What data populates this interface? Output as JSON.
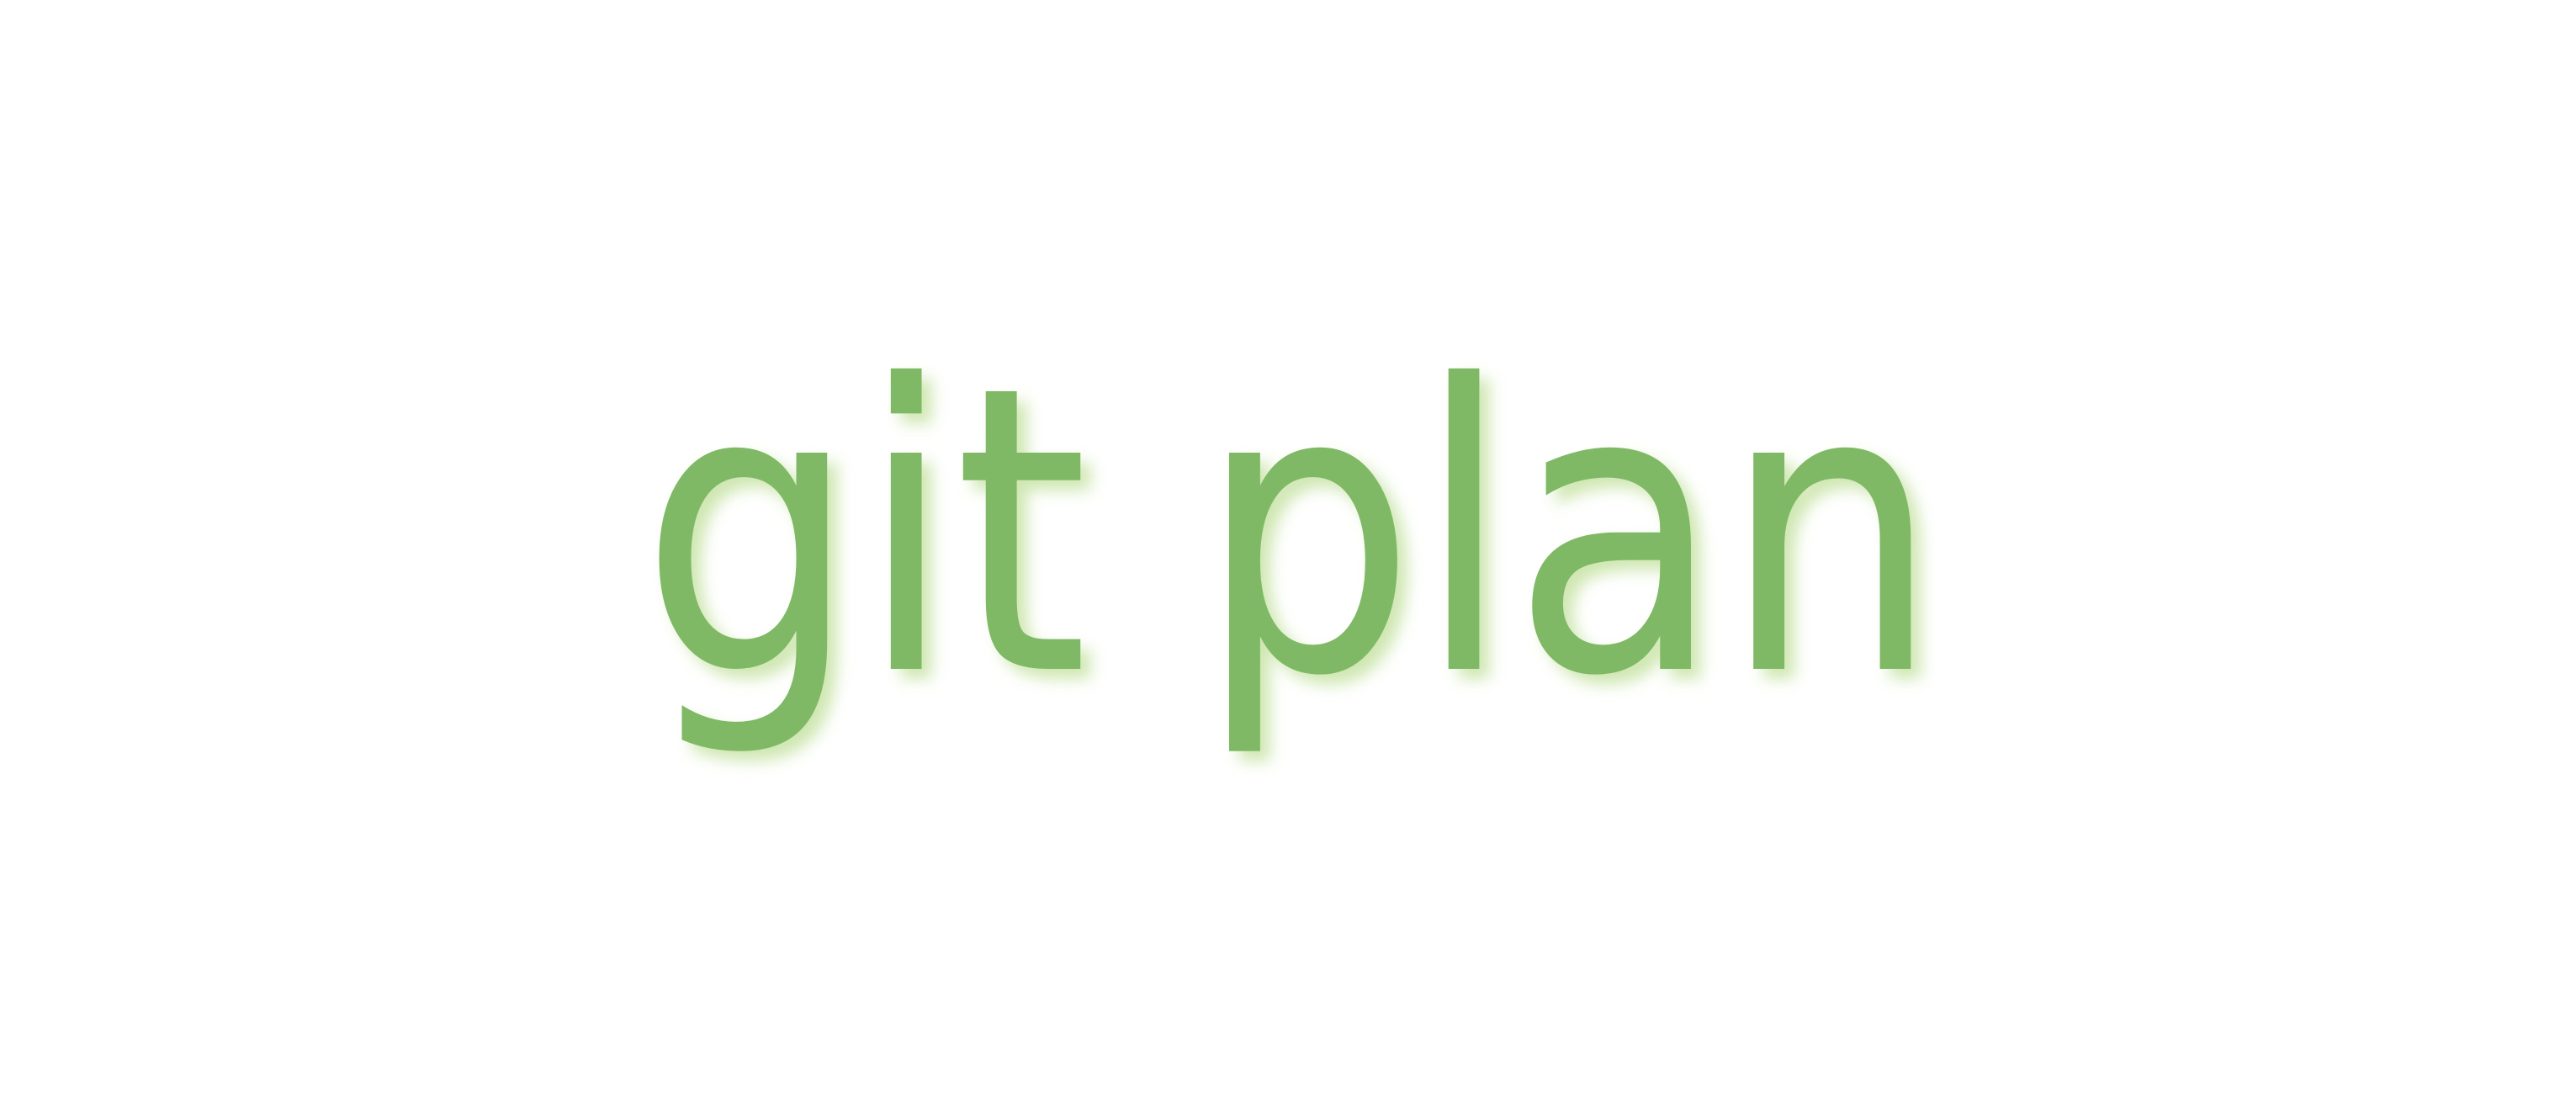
{
  "logo": {
    "text": "git plan",
    "color": "#80b966",
    "glow_color": "#c9e4a8"
  }
}
